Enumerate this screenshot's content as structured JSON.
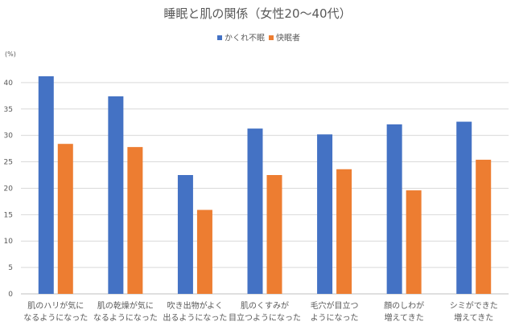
{
  "chart_data": {
    "type": "bar",
    "title": "睡眠と肌の関係（女性20〜40代）",
    "ylabel": "(%)",
    "xlabel": "",
    "ylim": [
      0,
      45
    ],
    "yticks": [
      0,
      5,
      10,
      15,
      20,
      25,
      30,
      35,
      40
    ],
    "grid": true,
    "legend_position": "top-center",
    "categories": [
      [
        "肌のハリが気に",
        "なるようになった"
      ],
      [
        "肌の乾燥が気に",
        "なるようになった"
      ],
      [
        "吹き出物がよく",
        "出るようになった"
      ],
      [
        "肌のくすみが",
        "目立つようになった"
      ],
      [
        "毛穴が目立つ",
        "ようになった"
      ],
      [
        "顔のしわが",
        "増えてきた"
      ],
      [
        "シミができた",
        "増えてきた"
      ]
    ],
    "series": [
      {
        "name": "かくれ不眠",
        "color": "#4472c4",
        "values": [
          41.2,
          37.4,
          22.5,
          31.3,
          30.2,
          32.1,
          32.6
        ]
      },
      {
        "name": "快眠者",
        "color": "#ed7d31",
        "values": [
          28.4,
          27.8,
          15.9,
          22.5,
          23.6,
          19.6,
          25.4
        ]
      }
    ]
  }
}
